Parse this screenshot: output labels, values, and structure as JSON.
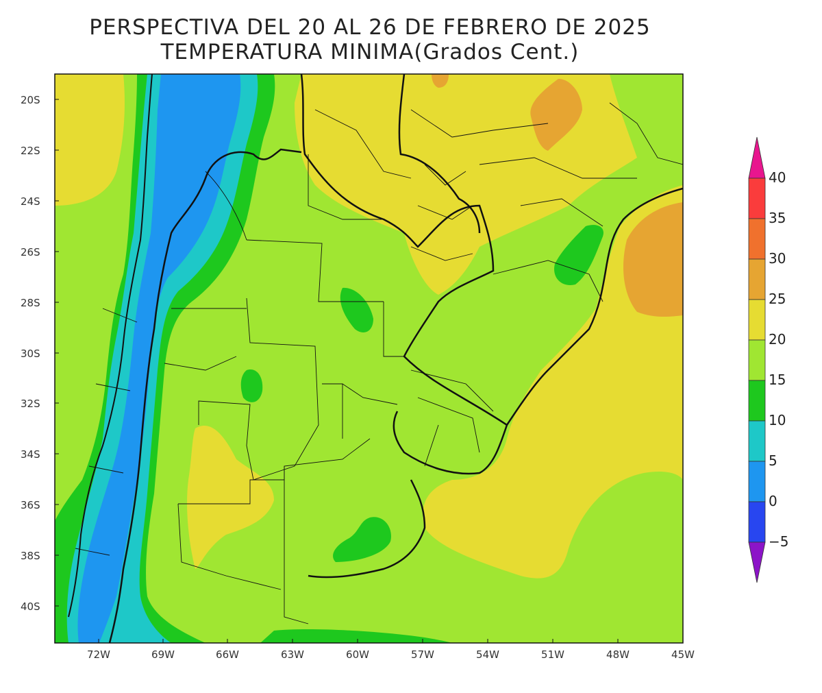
{
  "title": {
    "line1": "PERSPECTIVA DEL 20 AL 26 DE FEBRERO DE 2025",
    "line2": "TEMPERATURA MINIMA(Grados Cent.)"
  },
  "map": {
    "lat_labels": [
      "20S",
      "22S",
      "24S",
      "26S",
      "28S",
      "30S",
      "32S",
      "34S",
      "36S",
      "38S",
      "40S"
    ],
    "lon_labels": [
      "72W",
      "69W",
      "66W",
      "63W",
      "60W",
      "57W",
      "54W",
      "51W",
      "48W",
      "45W"
    ]
  },
  "colorbar": {
    "labels": [
      "40",
      "35",
      "30",
      "25",
      "20",
      "15",
      "10",
      "5",
      "0",
      "−5"
    ],
    "colors": [
      "#e8168e",
      "#fa3c3c",
      "#f0712d",
      "#e6a532",
      "#e6dc32",
      "#a0e632",
      "#1ec81e",
      "#1ec8c8",
      "#1e96f0",
      "#2846f0",
      "#8c14c8"
    ]
  }
}
